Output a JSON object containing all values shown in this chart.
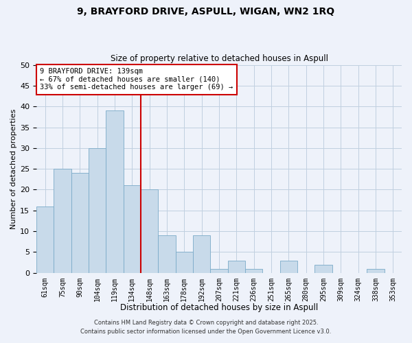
{
  "title1": "9, BRAYFORD DRIVE, ASPULL, WIGAN, WN2 1RQ",
  "title2": "Size of property relative to detached houses in Aspull",
  "xlabel": "Distribution of detached houses by size in Aspull",
  "ylabel": "Number of detached properties",
  "bar_labels": [
    "61sqm",
    "75sqm",
    "90sqm",
    "104sqm",
    "119sqm",
    "134sqm",
    "148sqm",
    "163sqm",
    "178sqm",
    "192sqm",
    "207sqm",
    "221sqm",
    "236sqm",
    "251sqm",
    "265sqm",
    "280sqm",
    "295sqm",
    "309sqm",
    "324sqm",
    "338sqm",
    "353sqm"
  ],
  "bar_heights": [
    16,
    25,
    24,
    30,
    39,
    21,
    20,
    9,
    5,
    9,
    1,
    3,
    1,
    0,
    3,
    0,
    2,
    0,
    0,
    1,
    0
  ],
  "bar_color": "#c8daea",
  "bar_edgecolor": "#7aaac8",
  "vline_x": 5.5,
  "vline_color": "#cc0000",
  "ylim": [
    0,
    50
  ],
  "yticks": [
    0,
    5,
    10,
    15,
    20,
    25,
    30,
    35,
    40,
    45,
    50
  ],
  "annotation_title": "9 BRAYFORD DRIVE: 139sqm",
  "annotation_line1": "← 67% of detached houses are smaller (140)",
  "annotation_line2": "33% of semi-detached houses are larger (69) →",
  "annotation_box_facecolor": "#ffffff",
  "annotation_box_edgecolor": "#cc0000",
  "bg_color": "#eef2fa",
  "grid_color": "#c0cfe0",
  "footer1": "Contains HM Land Registry data © Crown copyright and database right 2025.",
  "footer2": "Contains public sector information licensed under the Open Government Licence v3.0."
}
